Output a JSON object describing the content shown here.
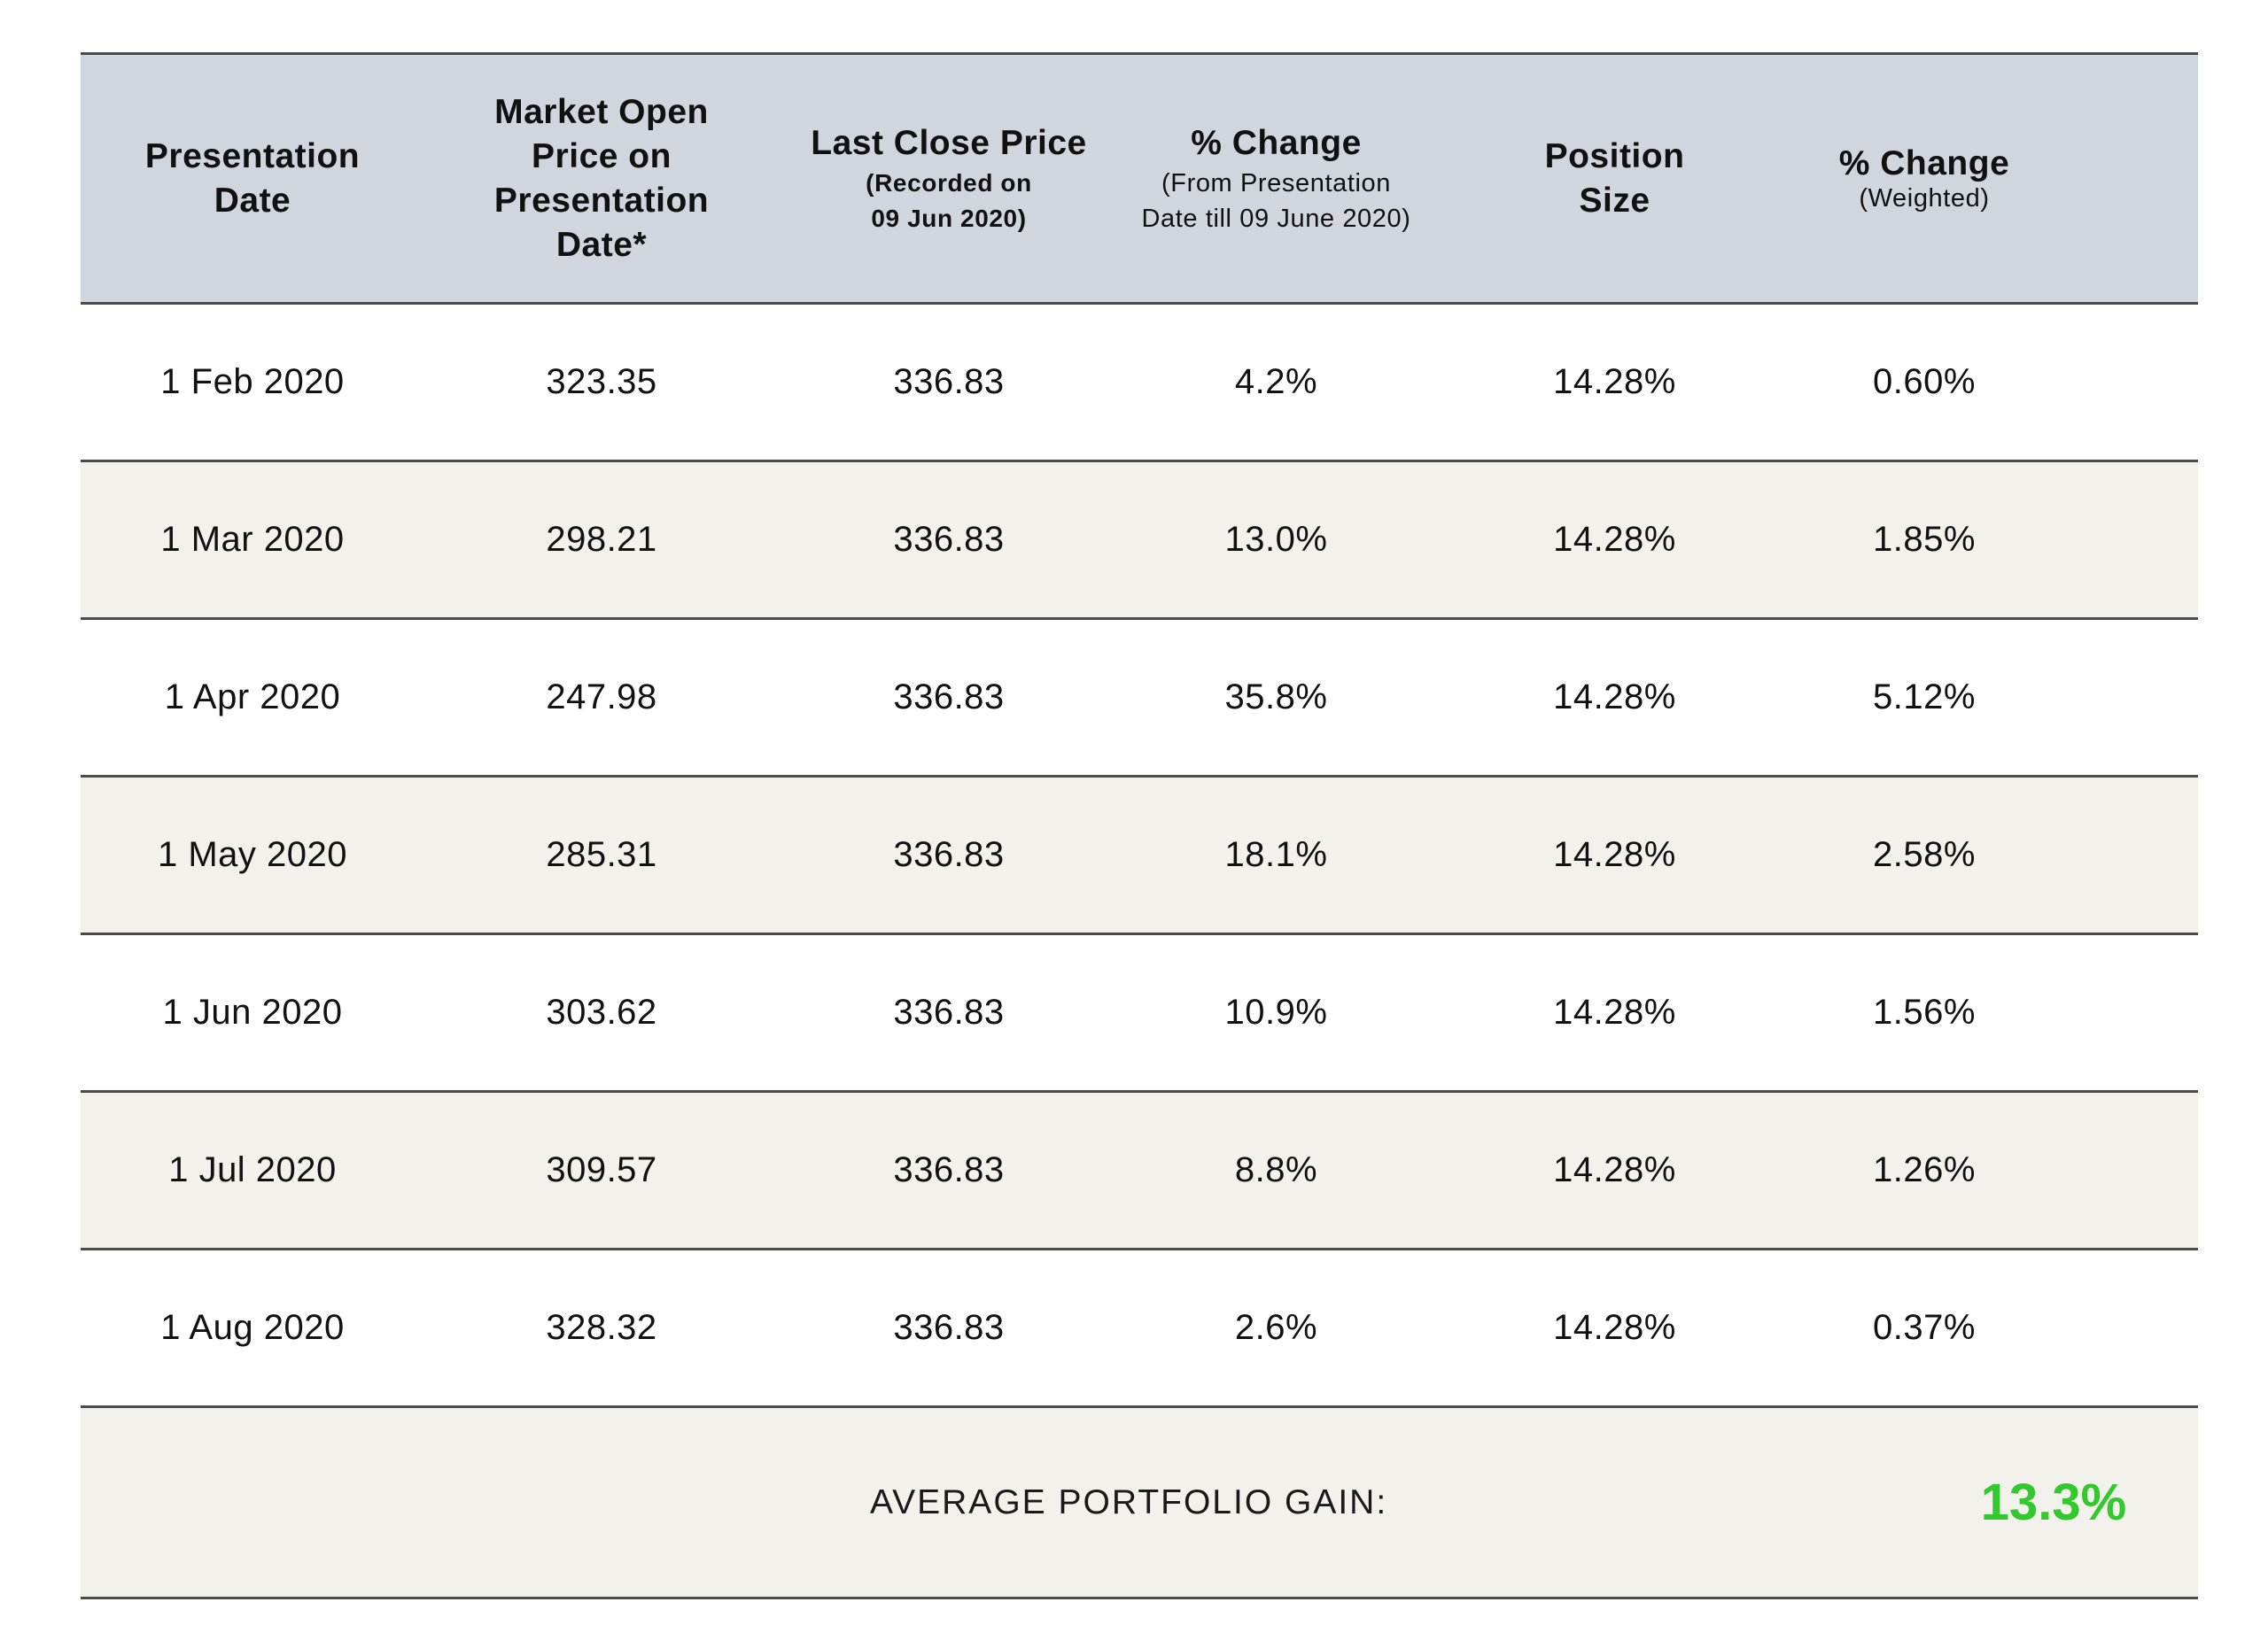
{
  "headers": [
    {
      "main": "Presentation\nDate",
      "sub": ""
    },
    {
      "main": "Market Open\nPrice on\nPresentation\nDate*",
      "sub": ""
    },
    {
      "main": "Last Close Price",
      "sub": "(Recorded on\n09 Jun 2020)"
    },
    {
      "main": "% Change",
      "sub": "(From Presentation\nDate till 09 June 2020)"
    },
    {
      "main": "Position\nSize",
      "sub": ""
    },
    {
      "main": "% Change",
      "sub": "(Weighted)"
    }
  ],
  "rows": [
    {
      "date": "1 Feb 2020",
      "open": "323.35",
      "close": "336.83",
      "change": "4.2%",
      "size": "14.28%",
      "weighted": "0.60%"
    },
    {
      "date": "1 Mar 2020",
      "open": "298.21",
      "close": "336.83",
      "change": "13.0%",
      "size": "14.28%",
      "weighted": "1.85%"
    },
    {
      "date": "1 Apr 2020",
      "open": "247.98",
      "close": "336.83",
      "change": "35.8%",
      "size": "14.28%",
      "weighted": "5.12%"
    },
    {
      "date": "1 May 2020",
      "open": "285.31",
      "close": "336.83",
      "change": "18.1%",
      "size": "14.28%",
      "weighted": "2.58%"
    },
    {
      "date": "1 Jun 2020",
      "open": "303.62",
      "close": "336.83",
      "change": "10.9%",
      "size": "14.28%",
      "weighted": "1.56%"
    },
    {
      "date": "1 Jul 2020",
      "open": "309.57",
      "close": "336.83",
      "change": "8.8%",
      "size": "14.28%",
      "weighted": "1.26%"
    },
    {
      "date": "1 Aug 2020",
      "open": "328.32",
      "close": "336.83",
      "change": "2.6%",
      "size": "14.28%",
      "weighted": "0.37%"
    }
  ],
  "footer": {
    "label": "AVERAGE PORTFOLIO GAIN:",
    "value": "13.3%"
  },
  "colors": {
    "header_bg": "#d1d5dd",
    "alt_row_bg": "#f3f1ec",
    "gain_green": "#31c92b"
  }
}
